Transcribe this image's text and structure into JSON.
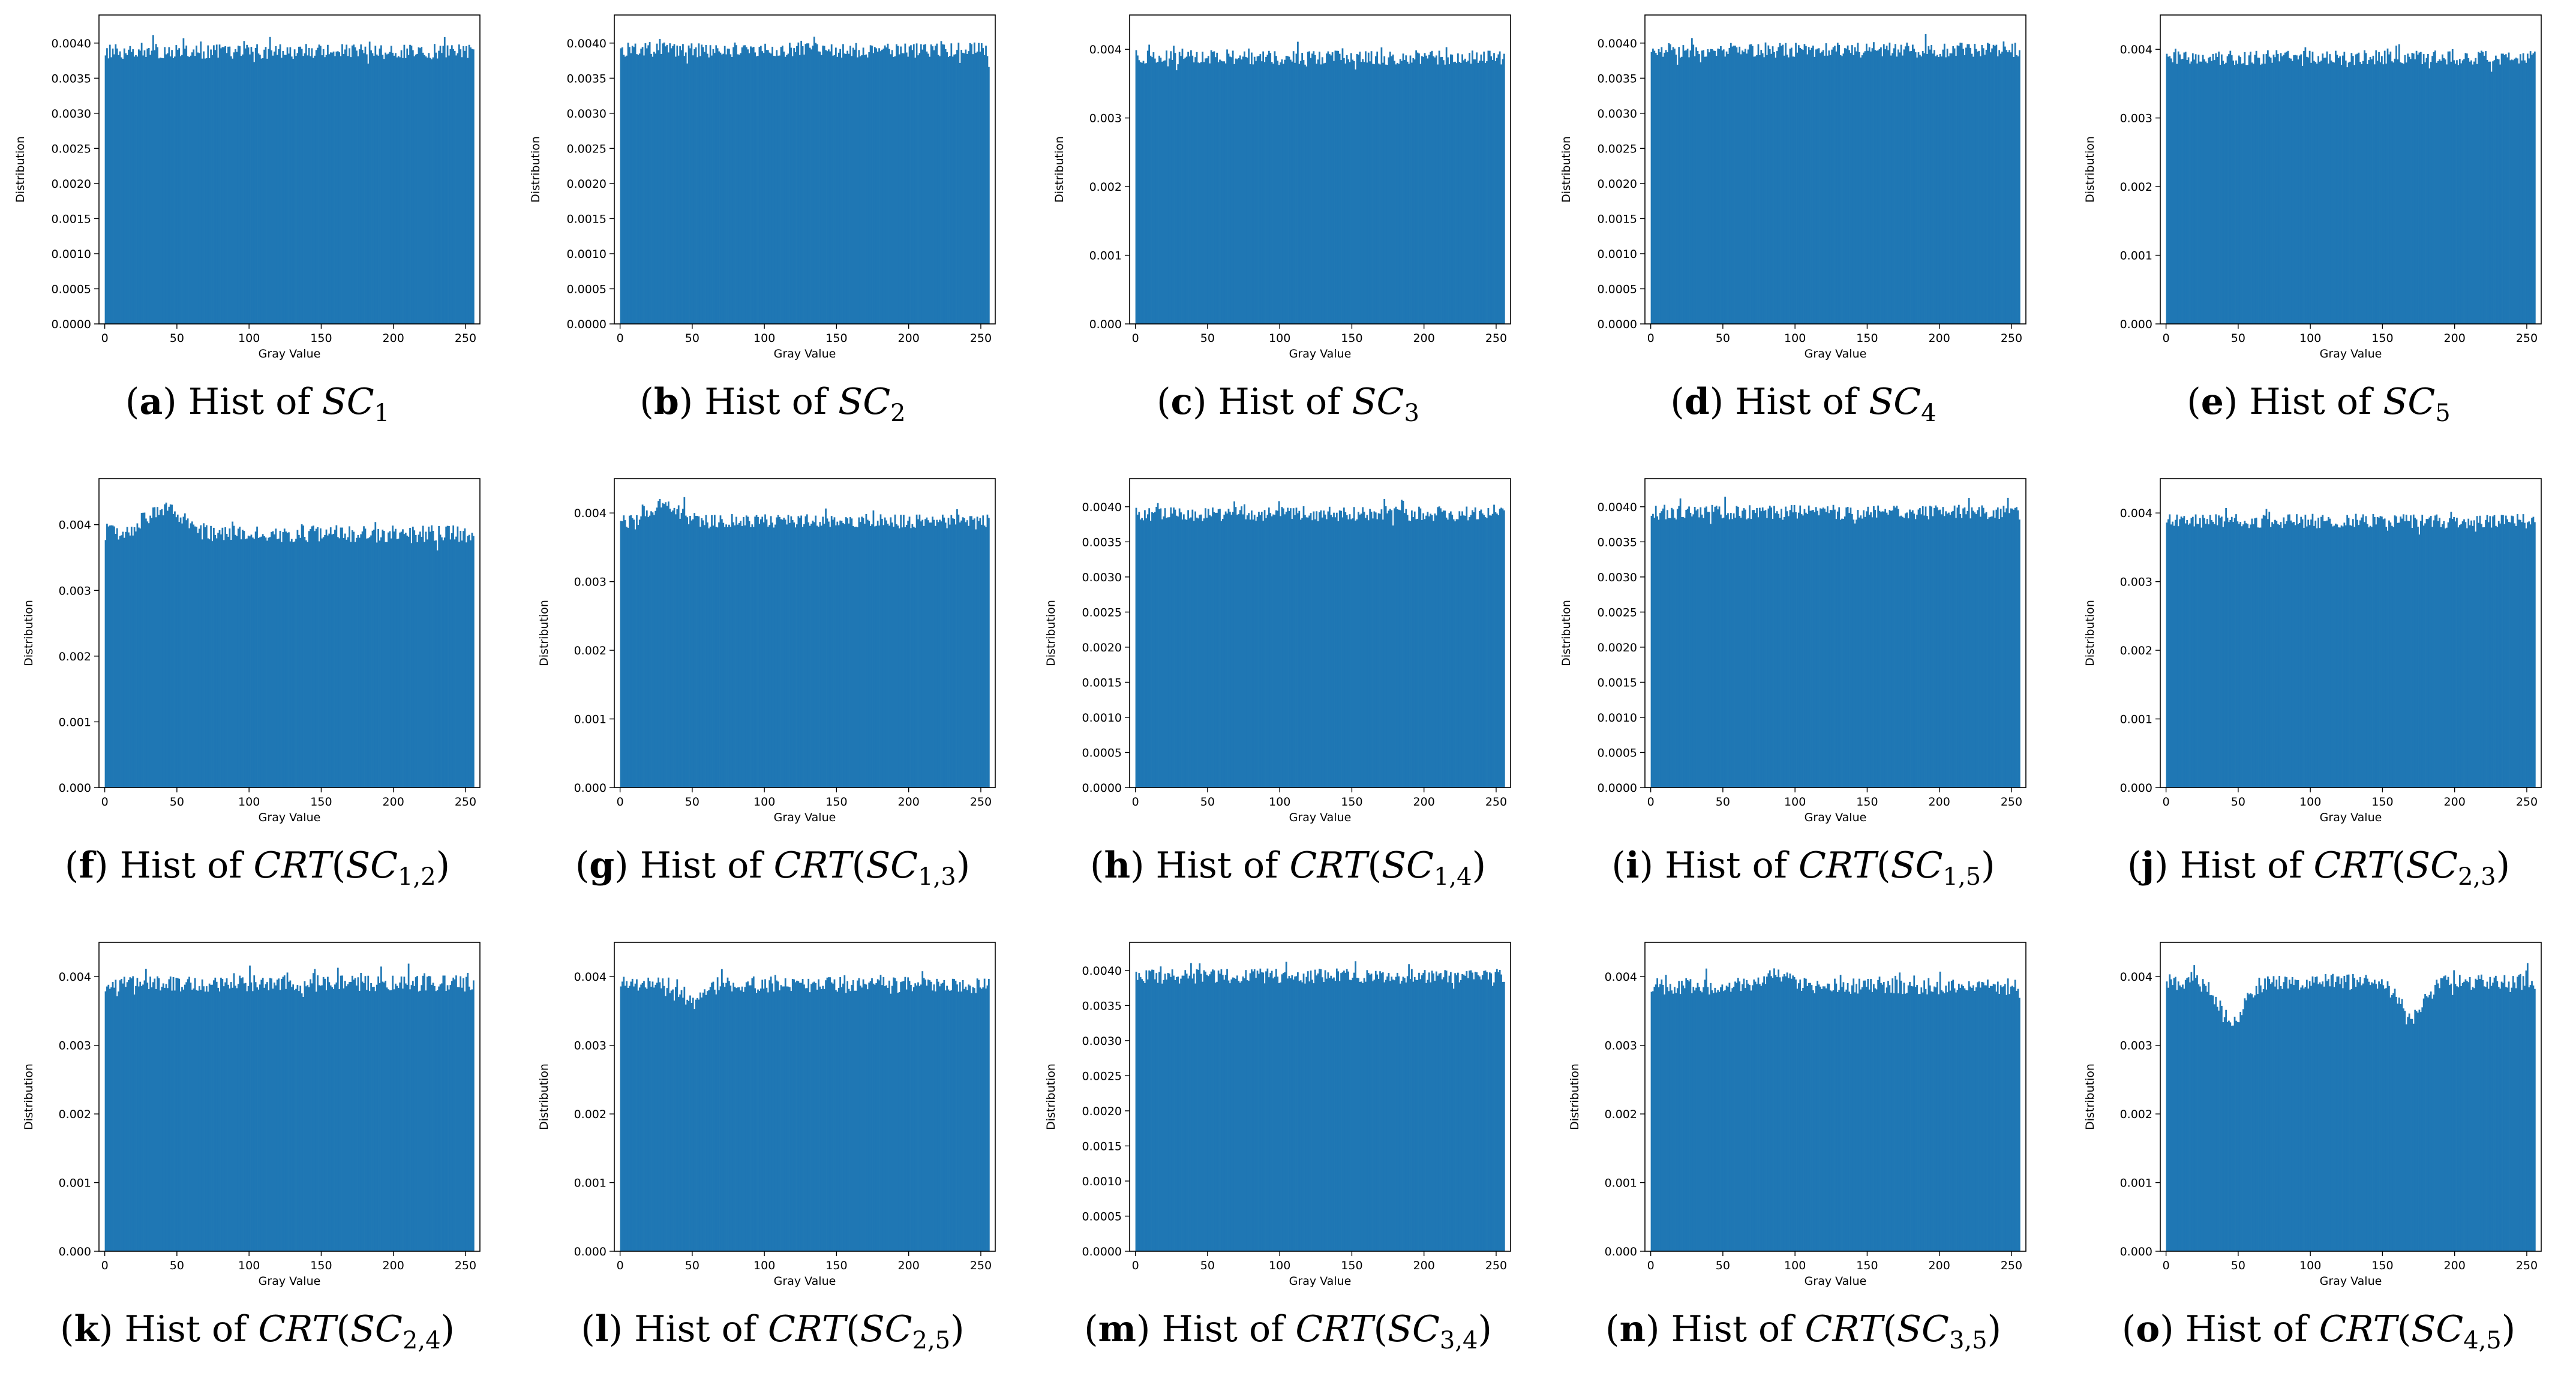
{
  "colors": {
    "bar": "#1f77b4",
    "axis": "#000000",
    "background": "#ffffff"
  },
  "chart_data": [
    {
      "id": "a",
      "type": "bar",
      "label": "a",
      "caption_prefix": "Hist of",
      "symbol": "SC",
      "subscript": "1",
      "wrap": false,
      "xlabel": "Gray Value",
      "ylabel": "Distribution",
      "xlim": [
        -4,
        260
      ],
      "ylim": [
        0,
        0.0044
      ],
      "xticks": [
        "0",
        "50",
        "100",
        "150",
        "200",
        "250"
      ],
      "yticks": [
        "0.0000",
        "0.0005",
        "0.0010",
        "0.0015",
        "0.0020",
        "0.0025",
        "0.0030",
        "0.0035",
        "0.0040"
      ],
      "bins": 256,
      "base_value": 0.00388,
      "noise_amplitude": 0.00018,
      "dips": []
    },
    {
      "id": "b",
      "type": "bar",
      "label": "b",
      "caption_prefix": "Hist of",
      "symbol": "SC",
      "subscript": "2",
      "wrap": false,
      "xlabel": "Gray Value",
      "ylabel": "Distribution",
      "xlim": [
        -4,
        260
      ],
      "ylim": [
        0,
        0.0044
      ],
      "xticks": [
        "0",
        "50",
        "100",
        "150",
        "200",
        "250"
      ],
      "yticks": [
        "0.0000",
        "0.0005",
        "0.0010",
        "0.0015",
        "0.0020",
        "0.0025",
        "0.0030",
        "0.0035",
        "0.0040"
      ],
      "bins": 256,
      "base_value": 0.0039,
      "noise_amplitude": 0.00018,
      "dips": []
    },
    {
      "id": "c",
      "type": "bar",
      "label": "c",
      "caption_prefix": "Hist of",
      "symbol": "SC",
      "subscript": "3",
      "wrap": false,
      "xlabel": "Gray Value",
      "ylabel": "Distribution",
      "xlim": [
        -4,
        260
      ],
      "ylim": [
        0,
        0.0045
      ],
      "xticks": [
        "0",
        "50",
        "100",
        "150",
        "200",
        "250"
      ],
      "yticks": [
        "0.000",
        "0.001",
        "0.002",
        "0.003",
        "0.004"
      ],
      "bins": 256,
      "base_value": 0.00388,
      "noise_amplitude": 0.00018,
      "dips": []
    },
    {
      "id": "d",
      "type": "bar",
      "label": "d",
      "caption_prefix": "Hist of",
      "symbol": "SC",
      "subscript": "4",
      "wrap": false,
      "xlabel": "Gray Value",
      "ylabel": "Distribution",
      "xlim": [
        -4,
        260
      ],
      "ylim": [
        0,
        0.0044
      ],
      "xticks": [
        "0",
        "50",
        "100",
        "150",
        "200",
        "250"
      ],
      "yticks": [
        "0.0000",
        "0.0005",
        "0.0010",
        "0.0015",
        "0.0020",
        "0.0025",
        "0.0030",
        "0.0035",
        "0.0040"
      ],
      "bins": 256,
      "base_value": 0.0039,
      "noise_amplitude": 0.00018,
      "dips": []
    },
    {
      "id": "e",
      "type": "bar",
      "label": "e",
      "caption_prefix": "Hist of",
      "symbol": "SC",
      "subscript": "5",
      "wrap": false,
      "xlabel": "Gray Value",
      "ylabel": "Distribution",
      "xlim": [
        -4,
        260
      ],
      "ylim": [
        0,
        0.0045
      ],
      "xticks": [
        "0",
        "50",
        "100",
        "150",
        "200",
        "250"
      ],
      "yticks": [
        "0.000",
        "0.001",
        "0.002",
        "0.003",
        "0.004"
      ],
      "bins": 256,
      "base_value": 0.00388,
      "noise_amplitude": 0.00018,
      "dips": []
    },
    {
      "id": "f",
      "type": "bar",
      "label": "f",
      "caption_prefix": "Hist of",
      "symbol": "CRT",
      "subscript": "1,2",
      "wrap": true,
      "xlabel": "Gray Value",
      "ylabel": "Distribution",
      "xlim": [
        -4,
        260
      ],
      "ylim": [
        0,
        0.0047
      ],
      "xticks": [
        "0",
        "50",
        "100",
        "150",
        "200",
        "250"
      ],
      "yticks": [
        "0.000",
        "0.001",
        "0.002",
        "0.003",
        "0.004"
      ],
      "bins": 256,
      "base_value": 0.00386,
      "noise_amplitude": 0.00022,
      "dips": [
        {
          "center": 40,
          "width": 18,
          "depth": -0.0004
        }
      ]
    },
    {
      "id": "g",
      "type": "bar",
      "label": "g",
      "caption_prefix": "Hist of",
      "symbol": "CRT",
      "subscript": "1,3",
      "wrap": true,
      "xlabel": "Gray Value",
      "ylabel": "Distribution",
      "xlim": [
        -4,
        260
      ],
      "ylim": [
        0,
        0.0045
      ],
      "xticks": [
        "0",
        "50",
        "100",
        "150",
        "200",
        "250"
      ],
      "yticks": [
        "0.000",
        "0.001",
        "0.002",
        "0.003",
        "0.004"
      ],
      "bins": 256,
      "base_value": 0.00388,
      "noise_amplitude": 0.00018,
      "dips": [
        {
          "center": 30,
          "width": 14,
          "depth": -0.00025
        }
      ]
    },
    {
      "id": "h",
      "type": "bar",
      "label": "h",
      "caption_prefix": "Hist of",
      "symbol": "CRT",
      "subscript": "1,4",
      "wrap": true,
      "xlabel": "Gray Value",
      "ylabel": "Distribution",
      "xlim": [
        -4,
        260
      ],
      "ylim": [
        0,
        0.0044
      ],
      "xticks": [
        "0",
        "50",
        "100",
        "150",
        "200",
        "250"
      ],
      "yticks": [
        "0.0000",
        "0.0005",
        "0.0010",
        "0.0015",
        "0.0020",
        "0.0025",
        "0.0030",
        "0.0035",
        "0.0040"
      ],
      "bins": 256,
      "base_value": 0.0039,
      "noise_amplitude": 0.00018,
      "dips": []
    },
    {
      "id": "i",
      "type": "bar",
      "label": "i",
      "caption_prefix": "Hist of",
      "symbol": "CRT",
      "subscript": "1,5",
      "wrap": true,
      "xlabel": "Gray Value",
      "ylabel": "Distribution",
      "xlim": [
        -4,
        260
      ],
      "ylim": [
        0,
        0.0044
      ],
      "xticks": [
        "0",
        "50",
        "100",
        "150",
        "200",
        "250"
      ],
      "yticks": [
        "0.0000",
        "0.0005",
        "0.0010",
        "0.0015",
        "0.0020",
        "0.0025",
        "0.0030",
        "0.0035",
        "0.0040"
      ],
      "bins": 256,
      "base_value": 0.00392,
      "noise_amplitude": 0.00018,
      "dips": []
    },
    {
      "id": "j",
      "type": "bar",
      "label": "j",
      "caption_prefix": "Hist of",
      "symbol": "CRT",
      "subscript": "2,3",
      "wrap": true,
      "xlabel": "Gray Value",
      "ylabel": "Distribution",
      "xlim": [
        -4,
        260
      ],
      "ylim": [
        0,
        0.0045
      ],
      "xticks": [
        "0",
        "50",
        "100",
        "150",
        "200",
        "250"
      ],
      "yticks": [
        "0.000",
        "0.001",
        "0.002",
        "0.003",
        "0.004"
      ],
      "bins": 256,
      "base_value": 0.00388,
      "noise_amplitude": 0.00018,
      "dips": []
    },
    {
      "id": "k",
      "type": "bar",
      "label": "k",
      "caption_prefix": "Hist of",
      "symbol": "CRT",
      "subscript": "2,4",
      "wrap": true,
      "xlabel": "Gray Value",
      "ylabel": "Distribution",
      "xlim": [
        -4,
        260
      ],
      "ylim": [
        0,
        0.0045
      ],
      "xticks": [
        "0",
        "50",
        "100",
        "150",
        "200",
        "250"
      ],
      "yticks": [
        "0.000",
        "0.001",
        "0.002",
        "0.003",
        "0.004"
      ],
      "bins": 256,
      "base_value": 0.0039,
      "noise_amplitude": 0.0002,
      "dips": []
    },
    {
      "id": "l",
      "type": "bar",
      "label": "l",
      "caption_prefix": "Hist of",
      "symbol": "CRT",
      "subscript": "2,5",
      "wrap": true,
      "xlabel": "Gray Value",
      "ylabel": "Distribution",
      "xlim": [
        -4,
        260
      ],
      "ylim": [
        0,
        0.0045
      ],
      "xticks": [
        "0",
        "50",
        "100",
        "150",
        "200",
        "250"
      ],
      "yticks": [
        "0.000",
        "0.001",
        "0.002",
        "0.003",
        "0.004"
      ],
      "bins": 256,
      "base_value": 0.00388,
      "noise_amplitude": 0.0002,
      "dips": [
        {
          "center": 50,
          "width": 8,
          "depth": 0.00025
        }
      ]
    },
    {
      "id": "m",
      "type": "bar",
      "label": "m",
      "caption_prefix": "Hist of",
      "symbol": "CRT",
      "subscript": "3,4",
      "wrap": true,
      "xlabel": "Gray Value",
      "ylabel": "Distribution",
      "xlim": [
        -4,
        260
      ],
      "ylim": [
        0,
        0.0044
      ],
      "xticks": [
        "0",
        "50",
        "100",
        "150",
        "200",
        "250"
      ],
      "yticks": [
        "0.0000",
        "0.0005",
        "0.0010",
        "0.0015",
        "0.0020",
        "0.0025",
        "0.0030",
        "0.0035",
        "0.0040"
      ],
      "bins": 256,
      "base_value": 0.00392,
      "noise_amplitude": 0.00018,
      "dips": []
    },
    {
      "id": "n",
      "type": "bar",
      "label": "n",
      "caption_prefix": "Hist of",
      "symbol": "CRT",
      "subscript": "3,5",
      "wrap": true,
      "xlabel": "Gray Value",
      "ylabel": "Distribution",
      "xlim": [
        -4,
        260
      ],
      "ylim": [
        0,
        0.0045
      ],
      "xticks": [
        "0",
        "50",
        "100",
        "150",
        "200",
        "250"
      ],
      "yticks": [
        "0.000",
        "0.001",
        "0.002",
        "0.003",
        "0.004"
      ],
      "bins": 256,
      "base_value": 0.00386,
      "noise_amplitude": 0.0002,
      "dips": [
        {
          "center": 85,
          "width": 12,
          "depth": -0.0002
        }
      ]
    },
    {
      "id": "o",
      "type": "bar",
      "label": "o",
      "caption_prefix": "Hist of",
      "symbol": "CRT",
      "subscript": "4,5",
      "wrap": true,
      "xlabel": "Gray Value",
      "ylabel": "Distribution",
      "xlim": [
        -4,
        260
      ],
      "ylim": [
        0,
        0.0045
      ],
      "xticks": [
        "0",
        "50",
        "100",
        "150",
        "200",
        "250"
      ],
      "yticks": [
        "0.000",
        "0.001",
        "0.002",
        "0.003",
        "0.004"
      ],
      "bins": 256,
      "base_value": 0.00392,
      "noise_amplitude": 0.0002,
      "dips": [
        {
          "center": 45,
          "width": 12,
          "depth": 0.0006
        },
        {
          "center": 170,
          "width": 12,
          "depth": 0.0005
        }
      ]
    }
  ]
}
